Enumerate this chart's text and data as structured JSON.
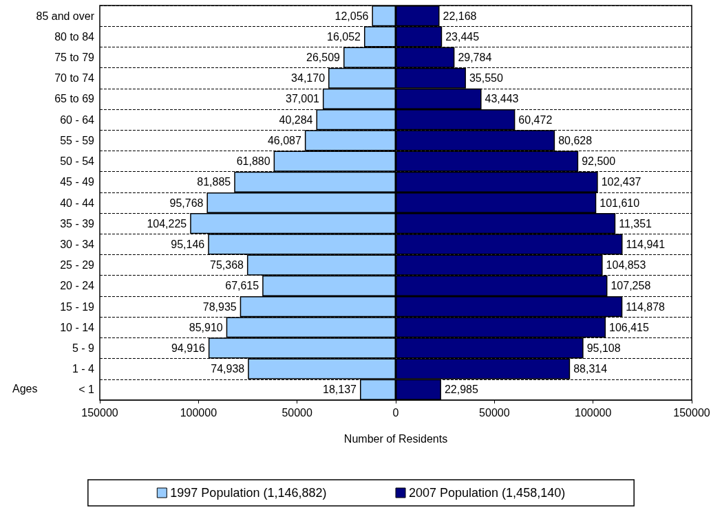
{
  "chart_data": {
    "type": "bar",
    "orientation": "horizontal",
    "stacked": true,
    "xlabel": "Number of Residents",
    "ylabel": "Ages",
    "categories": [
      "85 and over",
      "80 to 84",
      "75 to 79",
      "70 to 74",
      "65 to 69",
      "60 - 64",
      "55 - 59",
      "50 - 54",
      "45 - 49",
      "40 - 44",
      "35 - 39",
      "30 - 34",
      "25 - 29",
      "20 - 24",
      "15 - 19",
      "10 - 14",
      "5 - 9",
      "1 - 4",
      "< 1"
    ],
    "series": [
      {
        "name": "1997 Population (1,146,882)",
        "color": "#99ccff",
        "values": [
          -12056,
          -16052,
          -26509,
          -34170,
          -37001,
          -40284,
          -46087,
          -61880,
          -81885,
          -95768,
          -104225,
          -95146,
          -75368,
          -67615,
          -78935,
          -85910,
          -94916,
          -74938,
          -18137
        ]
      },
      {
        "name": "2007 Population (1,458,140)",
        "color": "#000080",
        "values": [
          22168,
          23445,
          29784,
          35550,
          43443,
          60472,
          80628,
          92500,
          102437,
          101610,
          111351,
          114941,
          104853,
          107258,
          114878,
          106415,
          95108,
          88314,
          22985
        ],
        "value_labels": [
          "22,168",
          "23,445",
          "29,784",
          "35,550",
          "43,443",
          "60,472",
          "80,628",
          "92,500",
          "102,437",
          "101,610",
          null,
          "114,941",
          "104,853",
          "107,258",
          "114,878",
          "106,415",
          "95,108",
          "88,314",
          "22,985"
        ]
      }
    ],
    "annotations": [
      {
        "text": "12,056",
        "x": -12056,
        "y": "85 and over"
      },
      {
        "text": "16,052",
        "x": -16052,
        "y": "80 to 84"
      },
      {
        "text": "26,509",
        "x": -26509,
        "y": "75 to 79"
      },
      {
        "text": "34,170",
        "x": -34170,
        "y": "70 to 74"
      },
      {
        "text": "37,001",
        "x": -37001,
        "y": "65 to 69"
      },
      {
        "text": "40,284",
        "x": -40284,
        "y": "60 - 64"
      },
      {
        "text": "46,087",
        "x": -46087,
        "y": "55 - 59"
      },
      {
        "text": "61,880",
        "x": -61880,
        "y": "50 - 54"
      },
      {
        "text": "81,885",
        "x": -81885,
        "y": "45 - 49"
      },
      {
        "text": "95,768",
        "x": -95768,
        "y": "40 - 44"
      },
      {
        "text": "104,225",
        "x": -104225,
        "y": "35 - 39"
      },
      {
        "text": "95,146",
        "x": -95146,
        "y": "30 - 34"
      },
      {
        "text": "75,368",
        "x": -75368,
        "y": "25 - 29"
      },
      {
        "text": "67,615",
        "x": -67615,
        "y": "20 - 24"
      },
      {
        "text": "78,935",
        "x": -78935,
        "y": "15 - 19"
      },
      {
        "text": "85,910",
        "x": -85910,
        "y": "10 - 14"
      },
      {
        "text": "94,916",
        "x": -94916,
        "y": "5 - 9"
      },
      {
        "text": "74,938",
        "x": -74938,
        "y": "1 - 4"
      },
      {
        "text": "18,137",
        "x": -18137,
        "y": "< 1"
      },
      {
        "text": "11,351",
        "x": 111351,
        "y": "35 - 39"
      }
    ],
    "xlim": [
      -150000,
      150000
    ],
    "xticks": [
      {
        "value": -150000,
        "label": "150000"
      },
      {
        "value": -100000,
        "label": "100000"
      },
      {
        "value": -50000,
        "label": "50000"
      },
      0,
      50000,
      100000,
      150000
    ],
    "grid": "y",
    "legend": "bottom"
  }
}
